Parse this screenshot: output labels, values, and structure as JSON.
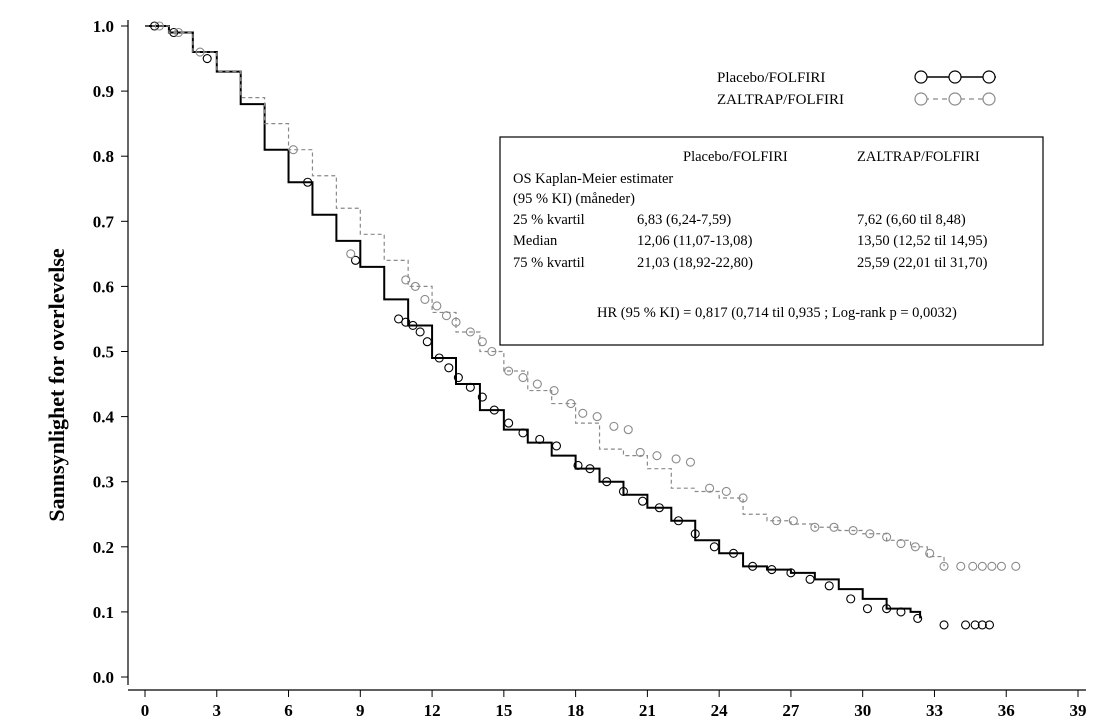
{
  "chart_data": {
    "type": "line",
    "title": "",
    "xlabel": "",
    "ylabel": "Sannsynlighet for overlevelse",
    "xlim": [
      0,
      39
    ],
    "ylim": [
      0.0,
      1.0
    ],
    "x_ticks": [
      "0",
      "3",
      "6",
      "9",
      "12",
      "15",
      "18",
      "21",
      "24",
      "27",
      "30",
      "33",
      "36",
      "39"
    ],
    "y_ticks": [
      "0.0",
      "0.1",
      "0.2",
      "0.3",
      "0.4",
      "0.5",
      "0.6",
      "0.7",
      "0.8",
      "0.9",
      "1.0"
    ],
    "grid": false,
    "legend_position": "top-right",
    "series": [
      {
        "name": "Placebo/FOLFIRI",
        "color": "#000000",
        "style": "solid",
        "marker": "open-circle",
        "x": [
          0,
          1,
          2,
          3,
          4,
          5,
          6,
          7,
          8,
          9,
          10,
          11,
          12,
          13,
          14,
          15,
          16,
          17,
          18,
          19,
          20,
          21,
          22,
          23,
          24,
          25,
          26,
          27,
          28,
          29,
          30,
          31,
          32,
          32.4
        ],
        "y": [
          1.0,
          0.99,
          0.96,
          0.93,
          0.88,
          0.81,
          0.76,
          0.71,
          0.67,
          0.63,
          0.58,
          0.54,
          0.49,
          0.45,
          0.41,
          0.38,
          0.36,
          0.34,
          0.32,
          0.3,
          0.28,
          0.26,
          0.24,
          0.21,
          0.19,
          0.17,
          0.165,
          0.16,
          0.15,
          0.135,
          0.12,
          0.105,
          0.1,
          0.09
        ],
        "censored_x": [
          0.4,
          1.2,
          2.6,
          6.8,
          8.8,
          10.6,
          10.9,
          11.2,
          11.5,
          11.8,
          12.3,
          12.7,
          13.1,
          13.6,
          14.1,
          14.6,
          15.2,
          15.8,
          16.5,
          17.2,
          18.1,
          18.6,
          19.3,
          20.0,
          20.8,
          21.5,
          22.3,
          23.0,
          23.8,
          24.6,
          25.4,
          26.2,
          27.0,
          27.8,
          28.6,
          29.5,
          30.2,
          31.0,
          31.6,
          32.3,
          33.4,
          34.3,
          34.7,
          35.0,
          35.3
        ],
        "censored_y": [
          1.0,
          0.99,
          0.95,
          0.76,
          0.64,
          0.55,
          0.545,
          0.54,
          0.53,
          0.515,
          0.49,
          0.475,
          0.46,
          0.445,
          0.43,
          0.41,
          0.39,
          0.375,
          0.365,
          0.355,
          0.325,
          0.32,
          0.3,
          0.285,
          0.27,
          0.26,
          0.24,
          0.22,
          0.2,
          0.19,
          0.17,
          0.165,
          0.16,
          0.15,
          0.14,
          0.12,
          0.105,
          0.105,
          0.1,
          0.09,
          0.08,
          0.08,
          0.08,
          0.08,
          0.08
        ]
      },
      {
        "name": "ZALTRAP/FOLFIRI",
        "color": "#8a8a8a",
        "style": "dashed",
        "marker": "open-circle",
        "x": [
          0,
          1,
          2,
          3,
          4,
          5,
          6,
          7,
          8,
          9,
          10,
          11,
          12,
          13,
          14,
          15,
          16,
          17,
          18,
          19,
          20,
          21,
          22,
          23,
          24,
          25,
          26,
          27,
          28,
          29,
          30,
          31,
          32,
          32.7,
          33.4
        ],
        "y": [
          1.0,
          0.99,
          0.96,
          0.93,
          0.89,
          0.85,
          0.81,
          0.77,
          0.72,
          0.68,
          0.64,
          0.6,
          0.56,
          0.53,
          0.5,
          0.47,
          0.44,
          0.42,
          0.39,
          0.35,
          0.34,
          0.32,
          0.29,
          0.285,
          0.275,
          0.25,
          0.24,
          0.235,
          0.23,
          0.225,
          0.22,
          0.21,
          0.2,
          0.185,
          0.17
        ],
        "censored_x": [
          0.6,
          1.4,
          2.3,
          6.2,
          8.6,
          10.9,
          11.3,
          11.7,
          12.2,
          12.6,
          13.0,
          13.6,
          14.1,
          14.5,
          15.2,
          15.8,
          16.4,
          17.1,
          17.8,
          18.3,
          18.9,
          19.6,
          20.2,
          20.7,
          21.4,
          22.2,
          22.8,
          23.6,
          24.3,
          25.0,
          26.4,
          27.1,
          28.0,
          28.8,
          29.6,
          30.3,
          31.0,
          31.6,
          32.2,
          32.8,
          33.4,
          34.1,
          34.6,
          35.0,
          35.4,
          35.8,
          36.4
        ],
        "censored_y": [
          1.0,
          0.99,
          0.96,
          0.81,
          0.65,
          0.61,
          0.6,
          0.58,
          0.57,
          0.555,
          0.545,
          0.53,
          0.515,
          0.5,
          0.47,
          0.46,
          0.45,
          0.44,
          0.42,
          0.405,
          0.4,
          0.385,
          0.38,
          0.345,
          0.34,
          0.335,
          0.33,
          0.29,
          0.285,
          0.275,
          0.24,
          0.24,
          0.23,
          0.23,
          0.225,
          0.22,
          0.215,
          0.205,
          0.2,
          0.19,
          0.17,
          0.17,
          0.17,
          0.17,
          0.17,
          0.17,
          0.17
        ]
      }
    ],
    "annotation_box": {
      "col_headers": [
        "Placebo/FOLFIRI",
        "ZALTRAP/FOLFIRI"
      ],
      "title_line1": "OS Kaplan-Meier estimater",
      "title_line2": "(95 % KI) (måneder)",
      "rows": [
        {
          "label": "25 % kvartil",
          "placebo": "6,83 (6,24-7,59)",
          "zaltrap": "7,62 (6,60 til 8,48)"
        },
        {
          "label": "Median",
          "placebo": "12,06 (11,07-13,08)",
          "zaltrap": "13,50 (12,52 til 14,95)"
        },
        {
          "label": "75 % kvartil",
          "placebo": "21,03 (18,92-22,80)",
          "zaltrap": "25,59 (22,01 til 31,70)"
        }
      ],
      "hr_text": "HR (95 % KI) = 0,817 (0,714 til 0,935 ; Log-rank p = 0,0032)"
    }
  }
}
